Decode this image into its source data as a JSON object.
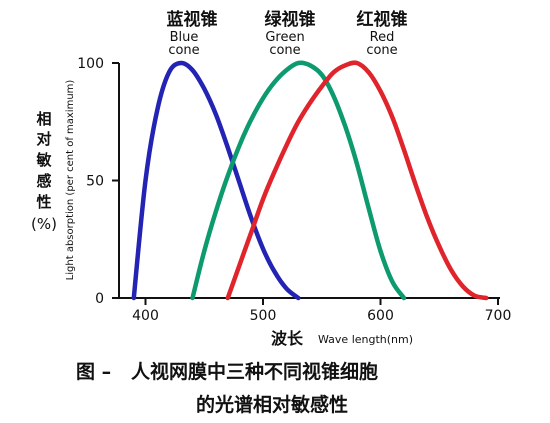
{
  "chart_data": {
    "type": "line",
    "xlim": [
      380,
      700
    ],
    "ylim": [
      0,
      100
    ],
    "x_ticks": [
      400,
      500,
      600,
      700
    ],
    "y_ticks": [
      0,
      50,
      100
    ],
    "grid": false,
    "legend": "labels above each peak",
    "ylabel": {
      "cn_chars": [
        "相",
        "对",
        "敏",
        "感",
        "性"
      ],
      "percent": "(%)",
      "en": "Light absorption (per cent of maximum)"
    },
    "xlabel": {
      "cn": "波长",
      "en": "Wave length(nm)"
    },
    "series": [
      {
        "name": "蓝视锥",
        "name_en": [
          "Blue",
          "cone"
        ],
        "color": "#2323b4",
        "x": [
          390,
          400,
          410,
          420,
          430,
          440,
          450,
          460,
          470,
          480,
          490,
          500,
          510,
          520,
          530
        ],
        "y": [
          0,
          50,
          80,
          96,
          100,
          97,
          89,
          78,
          64,
          49,
          34,
          21,
          11,
          4,
          0
        ]
      },
      {
        "name": "绿视锥",
        "name_en": [
          "Green",
          "cone"
        ],
        "color": "#0c9a6e",
        "x": [
          440,
          450,
          460,
          470,
          480,
          490,
          500,
          510,
          520,
          530,
          540,
          550,
          560,
          570,
          580,
          590,
          600,
          610,
          620
        ],
        "y": [
          0,
          20,
          37,
          52,
          65,
          76,
          85,
          92,
          97,
          100,
          99,
          95,
          86,
          73,
          57,
          38,
          20,
          7,
          0
        ]
      },
      {
        "name": "红视锥",
        "name_en": [
          "Red",
          "cone"
        ],
        "color": "#e0242b",
        "x": [
          470,
          480,
          490,
          500,
          510,
          520,
          530,
          540,
          550,
          560,
          570,
          580,
          590,
          600,
          610,
          620,
          630,
          640,
          650,
          660,
          670,
          680,
          690
        ],
        "y": [
          0,
          14,
          28,
          42,
          54,
          65,
          75,
          83,
          90,
          96,
          99,
          100,
          96,
          88,
          77,
          63,
          48,
          34,
          22,
          12,
          5,
          1,
          0
        ]
      }
    ]
  },
  "caption": {
    "line1": "图 –   人视网膜中三种不同视锥细胞",
    "line2": "的光谱相对敏感性"
  }
}
